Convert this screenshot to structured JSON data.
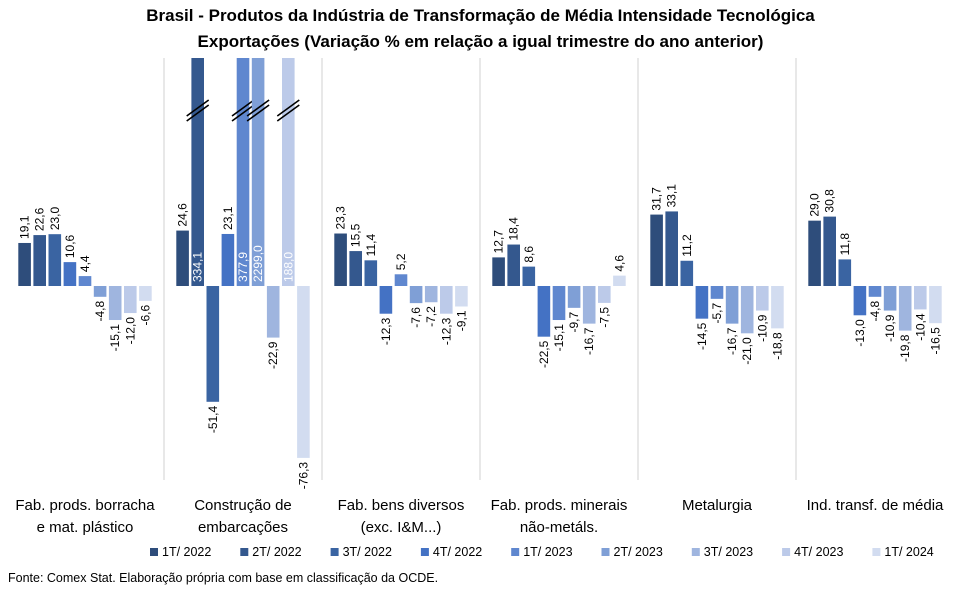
{
  "chart_data": {
    "type": "bar",
    "title": "Brasil - Produtos da Indústria de Transformação de Média Intensidade Tecnológica",
    "subtitle": "Exportações (Variação % em relação a igual trimestre do ano anterior)",
    "source": "Fonte: Comex Stat. Elaboração própria com base em classificação da OCDE.",
    "categories": [
      [
        "Fab. prods. borracha",
        "e mat. plástico"
      ],
      [
        "Construção de",
        "embarcações"
      ],
      [
        "Fab. bens diversos",
        "(exc. I&M...)"
      ],
      [
        "Fab. prods. minerais",
        "não-metáls."
      ],
      [
        "Metalurgia"
      ],
      [
        "Ind. transf. de média"
      ]
    ],
    "series": [
      {
        "name": "1T/ 2022",
        "color": "#2e4d7b",
        "values": [
          19.1,
          24.6,
          23.3,
          12.7,
          31.7,
          29.0
        ],
        "labels": [
          "19,1",
          "24,6",
          "23,3",
          "12,7",
          "31,7",
          "29,0"
        ]
      },
      {
        "name": "2T/ 2022",
        "color": "#34588e",
        "values": [
          22.6,
          334.1,
          15.5,
          18.4,
          33.1,
          30.8
        ],
        "labels": [
          "22,6",
          "334,1",
          "15,5",
          "18,4",
          "33,1",
          "30,8"
        ]
      },
      {
        "name": "3T/ 2022",
        "color": "#3a64a2",
        "values": [
          23.0,
          -51.4,
          11.4,
          8.6,
          11.2,
          11.8
        ],
        "labels": [
          "23,0",
          "-51,4",
          "11,4",
          "8,6",
          "11,2",
          "11,8"
        ]
      },
      {
        "name": "4T/ 2022",
        "color": "#4472c4",
        "values": [
          10.6,
          23.1,
          -12.3,
          -22.5,
          -14.5,
          -13.0
        ],
        "labels": [
          "10,6",
          "23,1",
          "-12,3",
          "-22,5",
          "-14,5",
          "-13,0"
        ]
      },
      {
        "name": "1T/ 2023",
        "color": "#5f87cf",
        "values": [
          4.4,
          377.9,
          5.2,
          -15.1,
          -5.7,
          -4.8
        ],
        "labels": [
          "4,4",
          "377,9",
          "5,2",
          "-15,1",
          "-5,7",
          "-4,8"
        ]
      },
      {
        "name": "2T/ 2023",
        "color": "#7f9fd6",
        "values": [
          -4.8,
          2299.0,
          -7.6,
          -9.7,
          -16.7,
          -10.9
        ],
        "labels": [
          "-4,8",
          "2299,0",
          "-7,6",
          "-9,7",
          "-16,7",
          "-10,9"
        ]
      },
      {
        "name": "3T/ 2023",
        "color": "#9fb5df",
        "values": [
          -15.1,
          -22.9,
          -7.2,
          -16.7,
          -21.0,
          -19.8
        ],
        "labels": [
          "-15,1",
          "-22,9",
          "-7,2",
          "-16,7",
          "-21,0",
          "-19,8"
        ]
      },
      {
        "name": "4T/ 2023",
        "color": "#bccae9",
        "values": [
          -12.0,
          188.0,
          -12.3,
          -7.5,
          -10.9,
          -10.4
        ],
        "labels": [
          "-12,0",
          "188,0",
          "-12,3",
          "-7,5",
          "-10,9",
          "-10,4"
        ]
      },
      {
        "name": "1T/ 2024",
        "color": "#d2dcf0",
        "values": [
          -6.6,
          -76.3,
          -9.1,
          4.6,
          -18.8,
          -16.5
        ],
        "labels": [
          "-6,6",
          "-76,3",
          "-9,1",
          "4,6",
          "-18,8",
          "-16,5"
        ]
      }
    ],
    "axis_break": true,
    "legend_position": "bottom",
    "grid": false
  }
}
